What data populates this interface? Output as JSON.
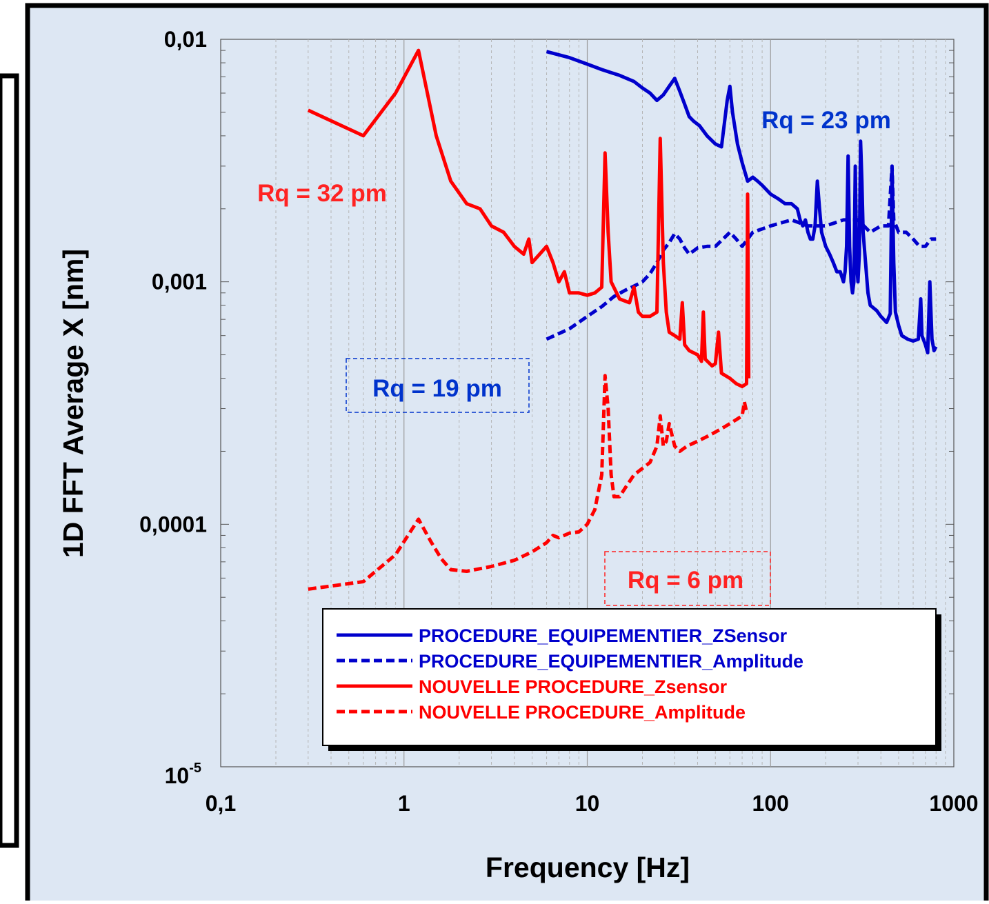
{
  "chart_data": {
    "type": "line",
    "title": "",
    "xlabel": "Frequency [Hz]",
    "ylabel": "1D FFT Average X [nm]",
    "x_scale": "log",
    "y_scale": "log",
    "xlim": [
      0.1,
      1000
    ],
    "ylim": [
      1e-05,
      0.01
    ],
    "grid": "vertical",
    "x_ticks": [
      {
        "value": 0.1,
        "label": "0,1"
      },
      {
        "value": 1,
        "label": "1"
      },
      {
        "value": 10,
        "label": "10"
      },
      {
        "value": 100,
        "label": "100"
      },
      {
        "value": 1000,
        "label": "1000"
      }
    ],
    "y_ticks": [
      {
        "value": 0.01,
        "label": "0,01",
        "sup": ""
      },
      {
        "value": 0.001,
        "label": "0,001",
        "sup": ""
      },
      {
        "value": 0.0001,
        "label": "0,0001",
        "sup": ""
      },
      {
        "value": 1e-05,
        "label": "10",
        "sup": "-5"
      }
    ],
    "legend_position": "bottom-right",
    "series": [
      {
        "name": "PROCEDURE_EQUIPEMENTIER_ZSensor",
        "color": "#0000cc",
        "dash": "solid",
        "points": [
          [
            6,
            0.0089
          ],
          [
            8,
            0.0084
          ],
          [
            10,
            0.0079
          ],
          [
            12,
            0.0075
          ],
          [
            15,
            0.0071
          ],
          [
            18,
            0.0067
          ],
          [
            20,
            0.0063
          ],
          [
            22,
            0.006
          ],
          [
            24,
            0.0056
          ],
          [
            26,
            0.0059
          ],
          [
            28,
            0.0064
          ],
          [
            30,
            0.0069
          ],
          [
            32,
            0.0061
          ],
          [
            34,
            0.0054
          ],
          [
            36,
            0.0048
          ],
          [
            38,
            0.0046
          ],
          [
            41,
            0.0044
          ],
          [
            45,
            0.004
          ],
          [
            50,
            0.0037
          ],
          [
            54,
            0.0036
          ],
          [
            56,
            0.0045
          ],
          [
            58,
            0.0056
          ],
          [
            60,
            0.0064
          ],
          [
            62,
            0.005
          ],
          [
            66,
            0.0037
          ],
          [
            70,
            0.0031
          ],
          [
            75,
            0.0026
          ],
          [
            80,
            0.0027
          ],
          [
            85,
            0.0026
          ],
          [
            90,
            0.0025
          ],
          [
            100,
            0.0023
          ],
          [
            110,
            0.0022
          ],
          [
            120,
            0.0021
          ],
          [
            130,
            0.0021
          ],
          [
            140,
            0.002
          ],
          [
            145,
            0.0018
          ],
          [
            150,
            0.0017
          ],
          [
            155,
            0.0018
          ],
          [
            160,
            0.0016
          ],
          [
            165,
            0.0015
          ],
          [
            170,
            0.0015
          ],
          [
            175,
            0.0017
          ],
          [
            180,
            0.0026
          ],
          [
            185,
            0.002
          ],
          [
            190,
            0.0016
          ],
          [
            200,
            0.0014
          ],
          [
            210,
            0.0013
          ],
          [
            220,
            0.0012
          ],
          [
            230,
            0.0011
          ],
          [
            240,
            0.0011
          ],
          [
            250,
            0.001
          ],
          [
            255,
            0.0011
          ],
          [
            260,
            0.0014
          ],
          [
            265,
            0.0033
          ],
          [
            270,
            0.0014
          ],
          [
            275,
            0.001
          ],
          [
            280,
            0.0009
          ],
          [
            285,
            0.001
          ],
          [
            290,
            0.003
          ],
          [
            295,
            0.0012
          ],
          [
            300,
            0.001
          ],
          [
            305,
            0.0013
          ],
          [
            310,
            0.0038
          ],
          [
            315,
            0.0026
          ],
          [
            320,
            0.0016
          ],
          [
            330,
            0.0012
          ],
          [
            340,
            0.0009
          ],
          [
            350,
            0.0008
          ],
          [
            380,
            0.00076
          ],
          [
            400,
            0.00072
          ],
          [
            430,
            0.00068
          ],
          [
            450,
            0.00074
          ],
          [
            460,
            0.0029
          ],
          [
            470,
            0.0012
          ],
          [
            480,
            0.00075
          ],
          [
            500,
            0.00066
          ],
          [
            520,
            0.0006
          ],
          [
            560,
            0.00058
          ],
          [
            600,
            0.00057
          ],
          [
            640,
            0.00058
          ],
          [
            660,
            0.00085
          ],
          [
            670,
            0.0006
          ],
          [
            700,
            0.00055
          ],
          [
            720,
            0.00051
          ],
          [
            740,
            0.001
          ],
          [
            760,
            0.00058
          ],
          [
            780,
            0.00052
          ],
          [
            800,
            0.00054
          ]
        ]
      },
      {
        "name": "PROCEDURE_EQUIPEMENTIER_Amplitude",
        "color": "#0000cc",
        "dash": "dashed",
        "points": [
          [
            6,
            0.00058
          ],
          [
            8,
            0.00064
          ],
          [
            10,
            0.00072
          ],
          [
            12,
            0.00079
          ],
          [
            14,
            0.00087
          ],
          [
            16,
            0.00092
          ],
          [
            18,
            0.00096
          ],
          [
            20,
            0.001
          ],
          [
            22,
            0.00108
          ],
          [
            24,
            0.0012
          ],
          [
            26,
            0.00135
          ],
          [
            28,
            0.00145
          ],
          [
            30,
            0.00158
          ],
          [
            32,
            0.0015
          ],
          [
            34,
            0.00138
          ],
          [
            36,
            0.0013
          ],
          [
            40,
            0.00138
          ],
          [
            45,
            0.0014
          ],
          [
            50,
            0.0014
          ],
          [
            55,
            0.0015
          ],
          [
            60,
            0.0016
          ],
          [
            65,
            0.0015
          ],
          [
            70,
            0.0014
          ],
          [
            80,
            0.0016
          ],
          [
            100,
            0.0017
          ],
          [
            130,
            0.0018
          ],
          [
            160,
            0.0017
          ],
          [
            200,
            0.0017
          ],
          [
            250,
            0.0018
          ],
          [
            300,
            0.0018
          ],
          [
            350,
            0.0016
          ],
          [
            400,
            0.0017
          ],
          [
            440,
            0.0017
          ],
          [
            460,
            0.003
          ],
          [
            470,
            0.0018
          ],
          [
            500,
            0.0016
          ],
          [
            550,
            0.0016
          ],
          [
            600,
            0.0015
          ],
          [
            650,
            0.0014
          ],
          [
            700,
            0.0014
          ],
          [
            750,
            0.0015
          ],
          [
            800,
            0.0015
          ]
        ]
      },
      {
        "name": "NOUVELLE PROCEDURE_Zsensor",
        "color": "#ff0000",
        "dash": "solid",
        "points": [
          [
            0.3,
            0.0051
          ],
          [
            0.6,
            0.004
          ],
          [
            0.9,
            0.006
          ],
          [
            1.2,
            0.009
          ],
          [
            1.5,
            0.004
          ],
          [
            1.8,
            0.0026
          ],
          [
            2.2,
            0.0021
          ],
          [
            2.6,
            0.002
          ],
          [
            3,
            0.0017
          ],
          [
            3.5,
            0.0016
          ],
          [
            4,
            0.0014
          ],
          [
            4.5,
            0.0013
          ],
          [
            4.8,
            0.0015
          ],
          [
            5,
            0.0012
          ],
          [
            5.5,
            0.0013
          ],
          [
            6,
            0.0014
          ],
          [
            6.5,
            0.0012
          ],
          [
            7,
            0.001
          ],
          [
            7.5,
            0.0011
          ],
          [
            8,
            0.0009
          ],
          [
            9,
            0.0009
          ],
          [
            10,
            0.00088
          ],
          [
            11,
            0.0009
          ],
          [
            12,
            0.00095
          ],
          [
            12.5,
            0.0034
          ],
          [
            13,
            0.0016
          ],
          [
            13.5,
            0.001
          ],
          [
            15,
            0.00085
          ],
          [
            17,
            0.00082
          ],
          [
            18,
            0.00095
          ],
          [
            19,
            0.00075
          ],
          [
            20,
            0.00072
          ],
          [
            22,
            0.00072
          ],
          [
            24,
            0.00075
          ],
          [
            25,
            0.0039
          ],
          [
            26,
            0.0012
          ],
          [
            27,
            0.00075
          ],
          [
            28,
            0.00062
          ],
          [
            30,
            0.0006
          ],
          [
            32,
            0.00058
          ],
          [
            33,
            0.00082
          ],
          [
            34,
            0.00055
          ],
          [
            36,
            0.00052
          ],
          [
            40,
            0.0005
          ],
          [
            42,
            0.00047
          ],
          [
            43,
            0.00075
          ],
          [
            44,
            0.00048
          ],
          [
            48,
            0.00045
          ],
          [
            50,
            0.00046
          ],
          [
            52,
            0.00062
          ],
          [
            54,
            0.00042
          ],
          [
            60,
            0.0004
          ],
          [
            65,
            0.00038
          ],
          [
            70,
            0.00037
          ],
          [
            74,
            0.00038
          ],
          [
            75,
            0.0023
          ],
          [
            76,
            0.0004
          ]
        ]
      },
      {
        "name": "NOUVELLE PROCEDURE_Amplitude",
        "color": "#ff0000",
        "dash": "dashed",
        "points": [
          [
            0.3,
            5.4e-05
          ],
          [
            0.6,
            5.8e-05
          ],
          [
            0.9,
            7.5e-05
          ],
          [
            1.2,
            0.000105
          ],
          [
            1.4,
            8.5e-05
          ],
          [
            1.6,
            7.2e-05
          ],
          [
            1.8,
            6.5e-05
          ],
          [
            2.2,
            6.4e-05
          ],
          [
            3,
            6.7e-05
          ],
          [
            4,
            7.1e-05
          ],
          [
            5,
            7.7e-05
          ],
          [
            6,
            8.4e-05
          ],
          [
            6.5,
            9e-05
          ],
          [
            7,
            8.8e-05
          ],
          [
            8,
            9.2e-05
          ],
          [
            9,
            9.3e-05
          ],
          [
            10,
            0.0001
          ],
          [
            11,
            0.000115
          ],
          [
            12,
            0.00016
          ],
          [
            12.5,
            0.00041
          ],
          [
            13,
            0.0003
          ],
          [
            13.5,
            0.00016
          ],
          [
            14,
            0.00013
          ],
          [
            15,
            0.00013
          ],
          [
            16,
            0.00014
          ],
          [
            18,
            0.00016
          ],
          [
            20,
            0.00017
          ],
          [
            22,
            0.00018
          ],
          [
            24,
            0.00021
          ],
          [
            25,
            0.00028
          ],
          [
            26,
            0.00021
          ],
          [
            27,
            0.00022
          ],
          [
            28,
            0.00026
          ],
          [
            30,
            0.00021
          ],
          [
            32,
            0.0002
          ],
          [
            35,
            0.00021
          ],
          [
            40,
            0.00022
          ],
          [
            45,
            0.00023
          ],
          [
            50,
            0.00024
          ],
          [
            55,
            0.00025
          ],
          [
            60,
            0.00026
          ],
          [
            65,
            0.00027
          ],
          [
            70,
            0.00028
          ],
          [
            72,
            0.00032
          ],
          [
            74,
            0.00029
          ],
          [
            76,
            0.00029
          ]
        ]
      }
    ],
    "annotations": [
      {
        "text": "Rq = 23 pm",
        "color": "#0033cc",
        "boxed": false
      },
      {
        "text": "Rq = 32 pm",
        "color": "#ff2222",
        "boxed": false
      },
      {
        "text": "Rq = 19 pm",
        "color": "#0033cc",
        "boxed": true
      },
      {
        "text": "Rq = 6 pm",
        "color": "#ff2222",
        "boxed": true
      }
    ],
    "colors": {
      "panel_bg": "#dde7f3",
      "blue": "#0000cc",
      "red": "#ff0000",
      "grid": "#b0b0b0"
    }
  }
}
